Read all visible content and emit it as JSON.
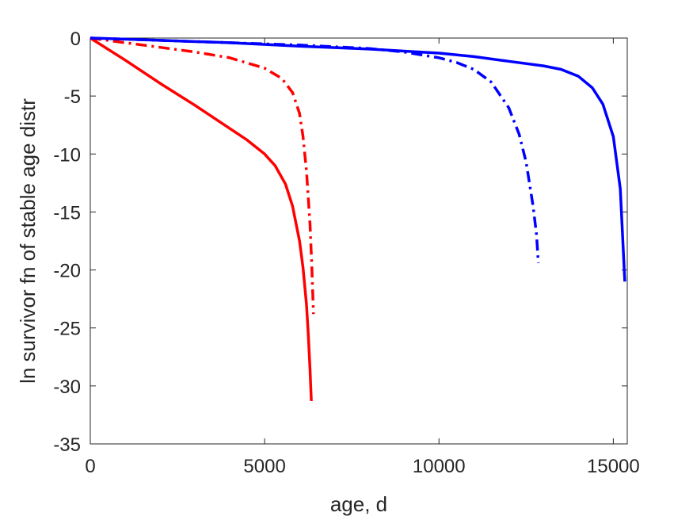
{
  "chart_data": {
    "type": "line",
    "title": "",
    "xlabel": "age, d",
    "ylabel": "ln survivor fn of stable age distr",
    "xlim": [
      0,
      15400
    ],
    "ylim": [
      -35,
      0
    ],
    "xticks": [
      0,
      5000,
      10000,
      15000
    ],
    "yticks": [
      0,
      -5,
      -10,
      -15,
      -20,
      -25,
      -30,
      -35
    ],
    "xtick_labels": [
      "0",
      "5000",
      "10000",
      "15000"
    ],
    "ytick_labels": [
      "0",
      "-5",
      "-10",
      "-15",
      "-20",
      "-25",
      "-30",
      "-35"
    ],
    "grid": false,
    "legend": false,
    "series": [
      {
        "color": "#ff0000",
        "style": "solid",
        "x": [
          0,
          1000,
          2000,
          3000,
          4000,
          4500,
          5000,
          5300,
          5600,
          5800,
          6000,
          6100,
          6200,
          6250,
          6300,
          6340
        ],
        "y": [
          0,
          -1.9,
          -3.9,
          -5.8,
          -7.8,
          -8.8,
          -10.0,
          -11.0,
          -12.6,
          -14.5,
          -17.5,
          -19.8,
          -23.0,
          -25.5,
          -28.5,
          -31.3
        ]
      },
      {
        "color": "#ff0000",
        "style": "dashdot",
        "x": [
          0,
          1000,
          2000,
          3000,
          4000,
          5000,
          5500,
          5800,
          6000,
          6100,
          6200,
          6300,
          6350,
          6400
        ],
        "y": [
          0,
          -0.4,
          -0.8,
          -1.2,
          -1.7,
          -2.6,
          -3.5,
          -4.7,
          -6.5,
          -8.5,
          -11.5,
          -16.0,
          -19.5,
          -23.8
        ]
      },
      {
        "color": "#0000ff",
        "style": "dashdot",
        "x": [
          0,
          2000,
          4000,
          6000,
          8000,
          9000,
          10000,
          10500,
          11000,
          11500,
          12000,
          12300,
          12500,
          12700,
          12800,
          12850
        ],
        "y": [
          0,
          -0.2,
          -0.4,
          -0.6,
          -0.9,
          -1.2,
          -1.7,
          -2.1,
          -2.7,
          -3.8,
          -6.0,
          -8.3,
          -10.7,
          -14.5,
          -17.0,
          -19.4
        ]
      },
      {
        "color": "#0000ff",
        "style": "solid",
        "x": [
          0,
          2000,
          4000,
          6000,
          8000,
          10000,
          11000,
          12000,
          13000,
          13500,
          14000,
          14400,
          14700,
          15000,
          15200,
          15330
        ],
        "y": [
          0,
          -0.2,
          -0.4,
          -0.7,
          -0.95,
          -1.3,
          -1.6,
          -2.0,
          -2.4,
          -2.7,
          -3.3,
          -4.3,
          -5.7,
          -8.5,
          -13.0,
          -21.0
        ]
      }
    ]
  }
}
